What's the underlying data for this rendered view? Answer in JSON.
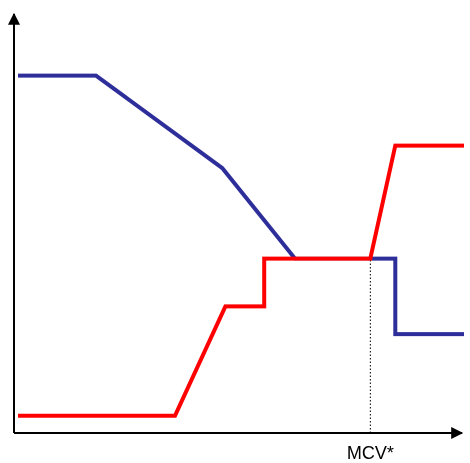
{
  "chart_data": {
    "type": "line",
    "title": "",
    "xlabel": "",
    "ylabel": "",
    "xlim": [
      0,
      100
    ],
    "ylim": [
      0,
      100
    ],
    "x_ticks": [
      {
        "x": 79,
        "label": "MCV*"
      }
    ],
    "grid": false,
    "legend": "none",
    "series": [
      {
        "color": "#2e2e9a",
        "points": [
          [
            0,
            87.9
          ],
          [
            17.5,
            87.9
          ],
          [
            45.8,
            64.9
          ],
          [
            62.1,
            42.4
          ],
          [
            79,
            42.4
          ],
          [
            84.6,
            42.4
          ],
          [
            84.6,
            23.6
          ],
          [
            100,
            23.6
          ]
        ]
      },
      {
        "color": "#ff0000",
        "points": [
          [
            0,
            3.3
          ],
          [
            35.2,
            3.3
          ],
          [
            46.5,
            30.5
          ],
          [
            55.2,
            30.5
          ],
          [
            55.2,
            42.4
          ],
          [
            79,
            42.4
          ],
          [
            84.6,
            70.5
          ],
          [
            100,
            70.5
          ]
        ]
      }
    ],
    "annotations": [
      {
        "type": "vertical-dotted-line",
        "x": 79,
        "from_y": 0,
        "to_y": 42.4,
        "color": "#000000"
      }
    ]
  }
}
